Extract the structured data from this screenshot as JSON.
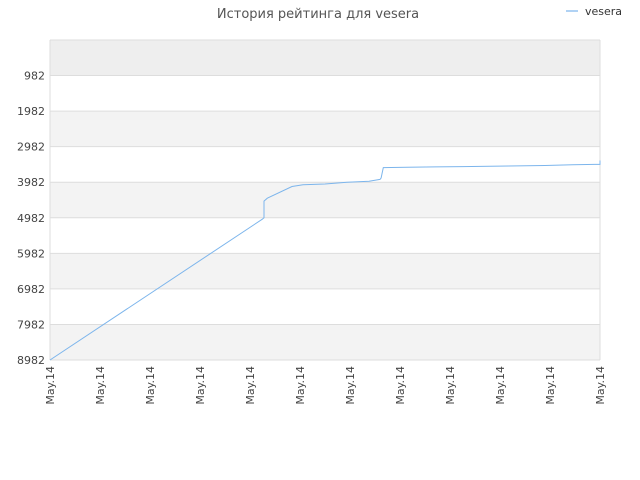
{
  "chart_data": {
    "type": "line",
    "title": "История рейтинга для vesera",
    "xlabel": "",
    "ylabel": "",
    "y_reversed": true,
    "ylim": [
      8982,
      -18
    ],
    "y_ticks": [
      982,
      1982,
      2982,
      3982,
      4982,
      5982,
      6982,
      7982,
      8982
    ],
    "x_ticks": [
      "May.14",
      "May.14",
      "May.14",
      "May.14",
      "May.14",
      "May.14",
      "May.14",
      "May.14",
      "May.14",
      "May.14",
      "May.14",
      "May.14"
    ],
    "grid": true,
    "band_colors": [
      "#eeeeee",
      "#f3f3f3",
      "#ffffff"
    ],
    "legend_position": "top-right",
    "series": [
      {
        "name": "vesera",
        "color": "#7cb5ec",
        "points": [
          [
            0.0,
            8982
          ],
          [
            0.386,
            5022
          ],
          [
            0.389,
            4982
          ],
          [
            0.389,
            4512
          ],
          [
            0.395,
            4432
          ],
          [
            0.44,
            4102
          ],
          [
            0.46,
            4052
          ],
          [
            0.5,
            4032
          ],
          [
            0.54,
            3982
          ],
          [
            0.58,
            3952
          ],
          [
            0.6,
            3902
          ],
          [
            0.602,
            3862
          ],
          [
            0.606,
            3572
          ],
          [
            0.65,
            3562
          ],
          [
            0.7,
            3552
          ],
          [
            0.75,
            3542
          ],
          [
            0.8,
            3532
          ],
          [
            0.85,
            3522
          ],
          [
            0.9,
            3512
          ],
          [
            0.95,
            3492
          ],
          [
            0.99,
            3482
          ],
          [
            1.0,
            3482
          ],
          [
            1.0,
            3372
          ]
        ]
      }
    ]
  }
}
